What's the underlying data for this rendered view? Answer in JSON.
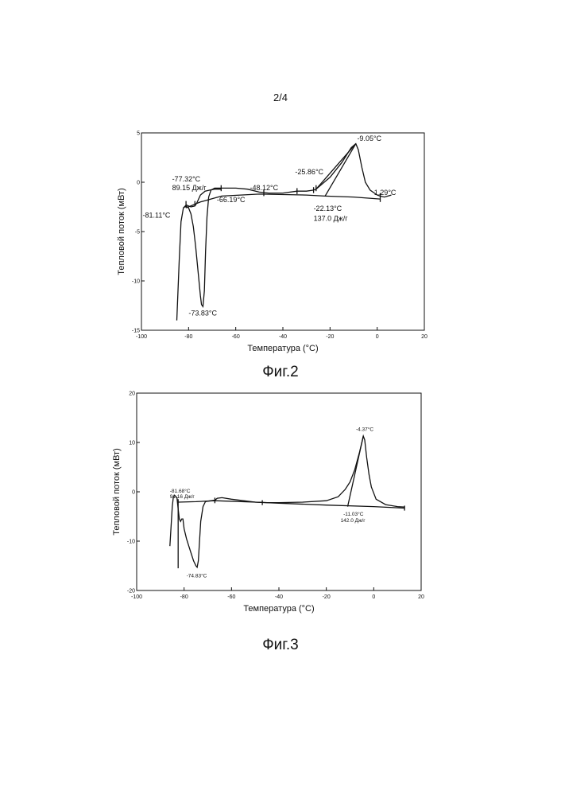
{
  "page_number": "2/4",
  "chart_data": [
    {
      "type": "line",
      "caption": "Фиг.2",
      "xlabel": "Температура (°С)",
      "ylabel": "Тепловой поток (мВт)",
      "xlim": [
        -100,
        20
      ],
      "ylim": [
        -15,
        5
      ],
      "x_ticks": [
        "-100",
        "-80",
        "-60",
        "-40",
        "-20",
        "0",
        "20"
      ],
      "y_ticks": [
        "5",
        "0",
        "-5",
        "-10",
        "-15"
      ],
      "grid": false,
      "series": [
        {
          "values": [
            [
              -85,
              -14
            ],
            [
              -84,
              -8
            ],
            [
              -83.2,
              -4
            ],
            [
              -82.2,
              -2.6
            ],
            [
              -81.1,
              -2.4
            ],
            [
              -80,
              -2.6
            ],
            [
              -79,
              -3.2
            ],
            [
              -78,
              -4.5
            ],
            [
              -77,
              -6.5
            ],
            [
              -76,
              -9
            ],
            [
              -75,
              -11.5
            ],
            [
              -74.5,
              -12.4
            ],
            [
              -73.9,
              -12.6
            ],
            [
              -73.3,
              -11
            ],
            [
              -72.8,
              -7
            ],
            [
              -72.2,
              -3.5
            ],
            [
              -71.5,
              -1.5
            ],
            [
              -70.5,
              -0.8
            ],
            [
              -69,
              -0.6
            ],
            [
              -66,
              -0.6
            ],
            [
              -60,
              -0.6
            ],
            [
              -55,
              -0.7
            ],
            [
              -50,
              -1
            ],
            [
              -46,
              -1.1
            ],
            [
              -40,
              -1.1
            ],
            [
              -34,
              -0.9
            ],
            [
              -30,
              -0.9
            ],
            [
              -27,
              -0.8
            ],
            [
              -25.9,
              -0.7
            ],
            [
              -20,
              0.5
            ],
            [
              -15,
              2
            ],
            [
              -11,
              3.5
            ],
            [
              -9.05,
              3.9
            ],
            [
              -8,
              3.3
            ],
            [
              -6.5,
              1.5
            ],
            [
              -5,
              0
            ],
            [
              -3,
              -0.8
            ],
            [
              0,
              -1.3
            ],
            [
              1.29,
              -1.4
            ],
            [
              3,
              -1.5
            ],
            [
              6,
              -1.3
            ]
          ]
        },
        {
          "values": [
            [
              -82.2,
              -2.6
            ],
            [
              -81,
              -2.3
            ],
            [
              -80,
              -2.4
            ],
            [
              -79,
              -2.5
            ],
            [
              -77.3,
              -2.4
            ],
            [
              -76.5,
              -2.1
            ],
            [
              -75,
              -1.3
            ],
            [
              -73,
              -0.9
            ],
            [
              -71,
              -0.8
            ],
            [
              -69,
              -0.7
            ],
            [
              -66,
              -0.7
            ]
          ]
        },
        {
          "values": [
            [
              -81.1,
              -2.6
            ],
            [
              -75,
              -2.0
            ],
            [
              -66,
              -1.4
            ],
            [
              -50,
              -1.2
            ],
            [
              -30,
              -1.3
            ],
            [
              -22.1,
              -1.4
            ],
            [
              -10,
              -1.5
            ],
            [
              1.29,
              -1.7
            ]
          ]
        },
        {
          "values": [
            [
              -81.1,
              -2.6
            ],
            [
              -81.1,
              -1.9
            ]
          ]
        },
        {
          "values": [
            [
              -77.3,
              -2.4
            ],
            [
              -77.3,
              -1.9
            ]
          ]
        },
        {
          "values": [
            [
              -66.2,
              -0.9
            ],
            [
              -66.2,
              -0.3
            ]
          ]
        },
        {
          "values": [
            [
              -48.1,
              -1.4
            ],
            [
              -48.1,
              -0.8
            ]
          ]
        },
        {
          "values": [
            [
              -34,
              -1.2
            ],
            [
              -34,
              -0.6
            ]
          ]
        },
        {
          "values": [
            [
              -27,
              -1.1
            ],
            [
              -27,
              -0.5
            ]
          ]
        },
        {
          "values": [
            [
              -25.9,
              -0.9
            ],
            [
              -25.9,
              -0.3
            ]
          ]
        },
        {
          "values": [
            [
              1.29,
              -2.0
            ],
            [
              1.29,
              -1.1
            ]
          ]
        },
        {
          "values": [
            [
              -22.1,
              -1.4
            ],
            [
              -9.05,
              3.9
            ]
          ]
        },
        {
          "values": [
            [
              -25.9,
              -0.7
            ],
            [
              -9.05,
              3.9
            ]
          ]
        }
      ],
      "annotations": [
        {
          "text": "-9.05°C",
          "x": -8.5,
          "y": 4.2
        },
        {
          "text": "-25.86°C",
          "x": -34.8,
          "y": 0.8
        },
        {
          "text": "-77.32°C",
          "x": -87,
          "y": 0.1
        },
        {
          "text": "89.15 Дж/г",
          "x": -87,
          "y": -0.8
        },
        {
          "text": "-48.12°C",
          "x": -54,
          "y": -0.8
        },
        {
          "text": "-66.19°C",
          "x": -68,
          "y": -2.0
        },
        {
          "text": "-81.11°C",
          "x": -99.5,
          "y": -3.6
        },
        {
          "text": "-22.13°C",
          "x": -27,
          "y": -2.9
        },
        {
          "text": "137.0 Дж/г",
          "x": -27,
          "y": -3.9
        },
        {
          "text": "1.29°C",
          "x": -1.3,
          "y": -1.3
        },
        {
          "text": "-73.83°C",
          "x": -80,
          "y": -13.5
        }
      ]
    },
    {
      "type": "line",
      "caption": "Фиг.3",
      "xlabel": "Температура (°С)",
      "ylabel": "Тепловой поток (мВт)",
      "xlim": [
        -100,
        20
      ],
      "ylim": [
        -20,
        20
      ],
      "x_ticks": [
        "-100",
        "-80",
        "-60",
        "-40",
        "-20",
        "0",
        "20"
      ],
      "y_ticks": [
        "20",
        "10",
        "0",
        "-10",
        "-20"
      ],
      "grid": false,
      "series": [
        {
          "values": [
            [
              -86,
              -11
            ],
            [
              -85.5,
              -7
            ],
            [
              -85,
              -3
            ],
            [
              -84.5,
              -1
            ],
            [
              -84,
              -0.7
            ],
            [
              -83,
              -1.2
            ],
            [
              -82.5,
              -3.5
            ],
            [
              -82,
              -5.5
            ],
            [
              -81.5,
              -6
            ],
            [
              -81,
              -5.5
            ],
            [
              -80.5,
              -5.5
            ],
            [
              -80,
              -7.5
            ],
            [
              -79.5,
              -8.5
            ],
            [
              -79,
              -9.5
            ],
            [
              -78,
              -11
            ],
            [
              -77,
              -12.5
            ],
            [
              -76,
              -14
            ],
            [
              -75,
              -15
            ],
            [
              -74.5,
              -15.3
            ],
            [
              -74,
              -14
            ],
            [
              -73.5,
              -10
            ],
            [
              -73,
              -6
            ],
            [
              -72,
              -3
            ],
            [
              -71,
              -2
            ],
            [
              -70,
              -1.9
            ],
            [
              -67,
              -1.7
            ],
            [
              -66,
              -1.3
            ],
            [
              -64,
              -1.2
            ],
            [
              -60,
              -1.5
            ],
            [
              -55,
              -1.8
            ],
            [
              -50,
              -2.1
            ],
            [
              -45,
              -2.2
            ],
            [
              -40,
              -2.2
            ],
            [
              -30,
              -2.1
            ],
            [
              -20,
              -1.8
            ],
            [
              -15,
              -1.0
            ],
            [
              -12,
              0.5
            ],
            [
              -10,
              2
            ],
            [
              -8,
              4.5
            ],
            [
              -6,
              8
            ],
            [
              -5,
              10
            ],
            [
              -4.4,
              11.3
            ],
            [
              -3.8,
              10.5
            ],
            [
              -3,
              7
            ],
            [
              -2,
              3.5
            ],
            [
              -1,
              1
            ],
            [
              1,
              -1.5
            ],
            [
              5,
              -2.6
            ],
            [
              10,
              -3.0
            ],
            [
              13,
              -3.1
            ]
          ]
        },
        {
          "values": [
            [
              -82.5,
              -15.5
            ],
            [
              -82.5,
              -1.5
            ]
          ]
        },
        {
          "values": [
            [
              -82.5,
              -2.1
            ],
            [
              -75,
              -2.0
            ],
            [
              -67,
              -1.8
            ],
            [
              -50,
              -2.1
            ],
            [
              -40,
              -2.3
            ],
            [
              -20,
              -2.7
            ],
            [
              0,
              -3.0
            ],
            [
              13,
              -3.3
            ]
          ]
        },
        {
          "values": [
            [
              -11,
              -3.0
            ],
            [
              -4.4,
              11.3
            ]
          ]
        },
        {
          "values": [
            [
              -67,
              -2.3
            ],
            [
              -67,
              -1.2
            ]
          ]
        },
        {
          "values": [
            [
              -47,
              -2.7
            ],
            [
              -47,
              -1.7
            ]
          ]
        },
        {
          "values": [
            [
              13,
              -3.8
            ],
            [
              13,
              -2.8
            ]
          ]
        }
      ],
      "annotations": [
        {
          "text": "-4.37°C",
          "x": -7.5,
          "y": 12.3
        },
        {
          "text": "-81.68°C",
          "x": -86,
          "y": -0.2
        },
        {
          "text": "91.16 Дж/г",
          "x": -86,
          "y": -1.3
        },
        {
          "text": "-11.03°C",
          "x": -12.8,
          "y": -4.8
        },
        {
          "text": "142.0 Дж/г",
          "x": -14,
          "y": -6.1
        },
        {
          "text": "-74.83°C",
          "x": -79,
          "y": -17.3
        }
      ]
    }
  ]
}
